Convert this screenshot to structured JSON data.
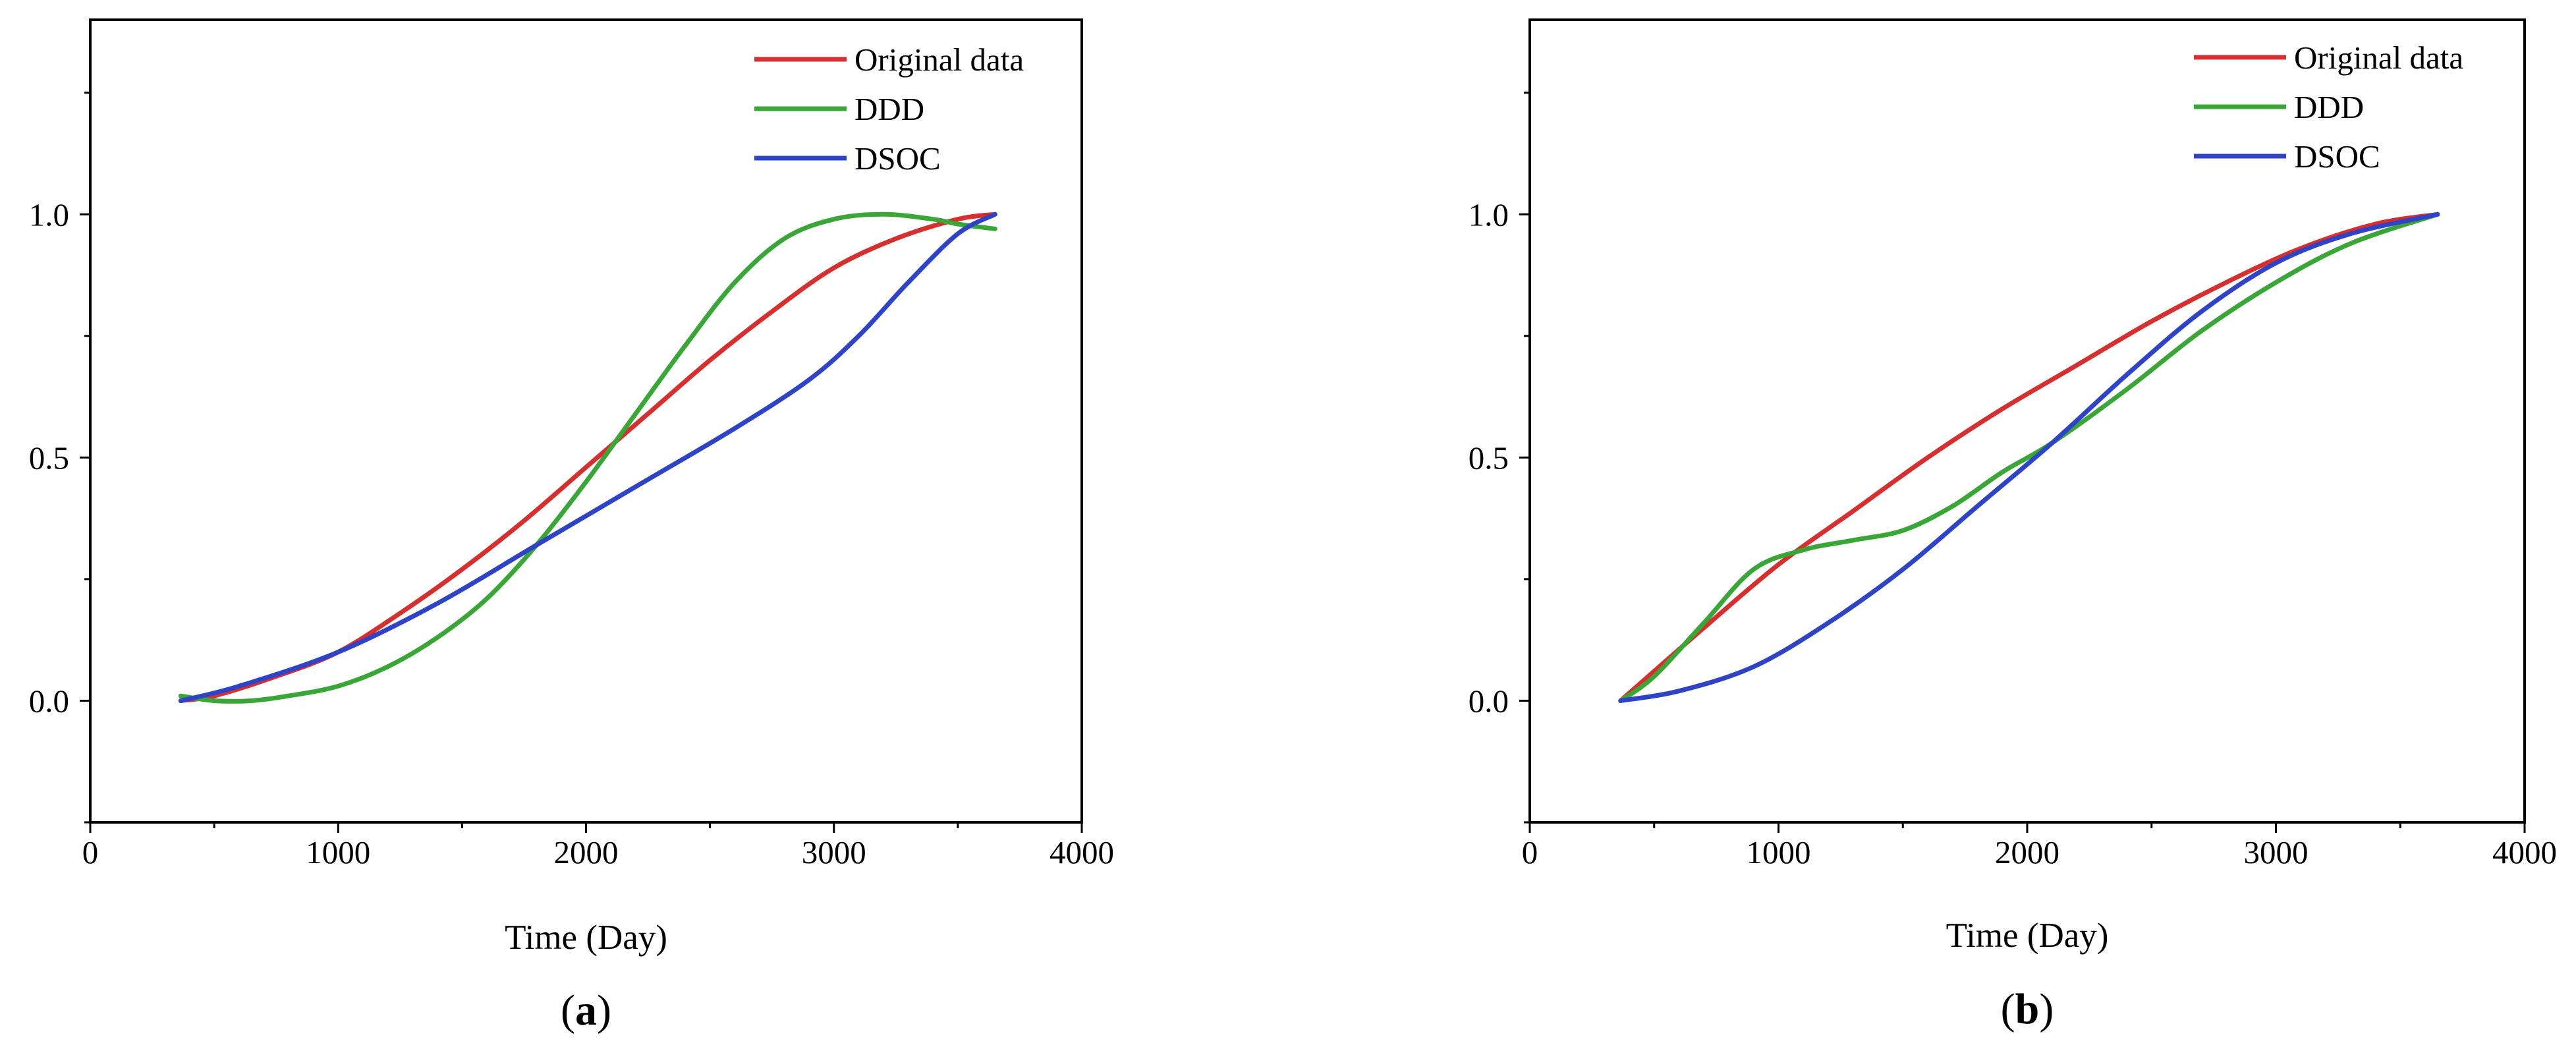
{
  "figure": {
    "panels": [
      "a",
      "b"
    ]
  },
  "chart_data": [
    {
      "type": "line",
      "panel_label": "a",
      "title": "",
      "xlabel": "Time (Day)",
      "ylabel": "",
      "xlim": [
        0,
        4000
      ],
      "ylim": [
        -0.25,
        1.4
      ],
      "xticks": [
        0,
        1000,
        2000,
        3000,
        4000
      ],
      "xtick_labels": [
        "0",
        "1000",
        "2000",
        "3000",
        "4000"
      ],
      "yticks": [
        0.0,
        0.5,
        1.0
      ],
      "ytick_labels": [
        "0.0",
        "0.5",
        "1.0"
      ],
      "grid": false,
      "legend_position": "top-right",
      "series": [
        {
          "name": "Original data",
          "color": "#d62f2f",
          "x": [
            365,
            500,
            750,
            1000,
            1250,
            1500,
            1750,
            2000,
            2250,
            2500,
            2750,
            3000,
            3250,
            3500,
            3650
          ],
          "y": [
            0.0,
            0.01,
            0.05,
            0.1,
            0.18,
            0.27,
            0.37,
            0.48,
            0.59,
            0.7,
            0.8,
            0.89,
            0.95,
            0.99,
            1.0
          ]
        },
        {
          "name": "DDD",
          "color": "#3aa637",
          "x": [
            365,
            500,
            650,
            800,
            1000,
            1200,
            1400,
            1600,
            1800,
            2000,
            2200,
            2400,
            2600,
            2800,
            3000,
            3200,
            3400,
            3500,
            3650
          ],
          "y": [
            0.01,
            0.0,
            0.0,
            0.01,
            0.03,
            0.07,
            0.13,
            0.21,
            0.32,
            0.45,
            0.59,
            0.73,
            0.86,
            0.95,
            0.99,
            1.0,
            0.99,
            0.98,
            0.97
          ]
        },
        {
          "name": "DSOC",
          "color": "#2f43c6",
          "x": [
            365,
            600,
            1000,
            1400,
            1800,
            2200,
            2600,
            2900,
            3100,
            3300,
            3500,
            3650
          ],
          "y": [
            0.0,
            0.03,
            0.1,
            0.2,
            0.32,
            0.44,
            0.56,
            0.66,
            0.75,
            0.86,
            0.96,
            1.0
          ]
        }
      ]
    },
    {
      "type": "line",
      "panel_label": "b",
      "title": "",
      "xlabel": "Time (Day)",
      "ylabel": "",
      "xlim": [
        0,
        4000
      ],
      "ylim": [
        -0.25,
        1.4
      ],
      "xticks": [
        0,
        1000,
        2000,
        3000,
        4000
      ],
      "xtick_labels": [
        "0",
        "1000",
        "2000",
        "3000",
        "4000"
      ],
      "yticks": [
        0.0,
        0.5,
        1.0
      ],
      "ytick_labels": [
        "0.0",
        "0.5",
        "1.0"
      ],
      "grid": false,
      "legend_position": "top-right",
      "series": [
        {
          "name": "Original data",
          "color": "#d62f2f",
          "x": [
            365,
            700,
            1000,
            1300,
            1600,
            1900,
            2200,
            2500,
            2800,
            3100,
            3400,
            3650
          ],
          "y": [
            0.0,
            0.15,
            0.28,
            0.39,
            0.5,
            0.6,
            0.69,
            0.78,
            0.86,
            0.93,
            0.98,
            1.0
          ]
        },
        {
          "name": "DDD",
          "color": "#3aa637",
          "x": [
            365,
            500,
            700,
            900,
            1100,
            1300,
            1500,
            1700,
            1900,
            2100,
            2400,
            2700,
            3000,
            3300,
            3650
          ],
          "y": [
            0.0,
            0.05,
            0.16,
            0.27,
            0.31,
            0.33,
            0.35,
            0.4,
            0.47,
            0.53,
            0.64,
            0.76,
            0.86,
            0.94,
            1.0
          ]
        },
        {
          "name": "DSOC",
          "color": "#2f43c6",
          "x": [
            365,
            600,
            900,
            1200,
            1500,
            1800,
            2100,
            2400,
            2700,
            3000,
            3300,
            3650
          ],
          "y": [
            0.0,
            0.02,
            0.07,
            0.16,
            0.27,
            0.4,
            0.53,
            0.67,
            0.8,
            0.9,
            0.96,
            1.0
          ]
        }
      ]
    }
  ]
}
